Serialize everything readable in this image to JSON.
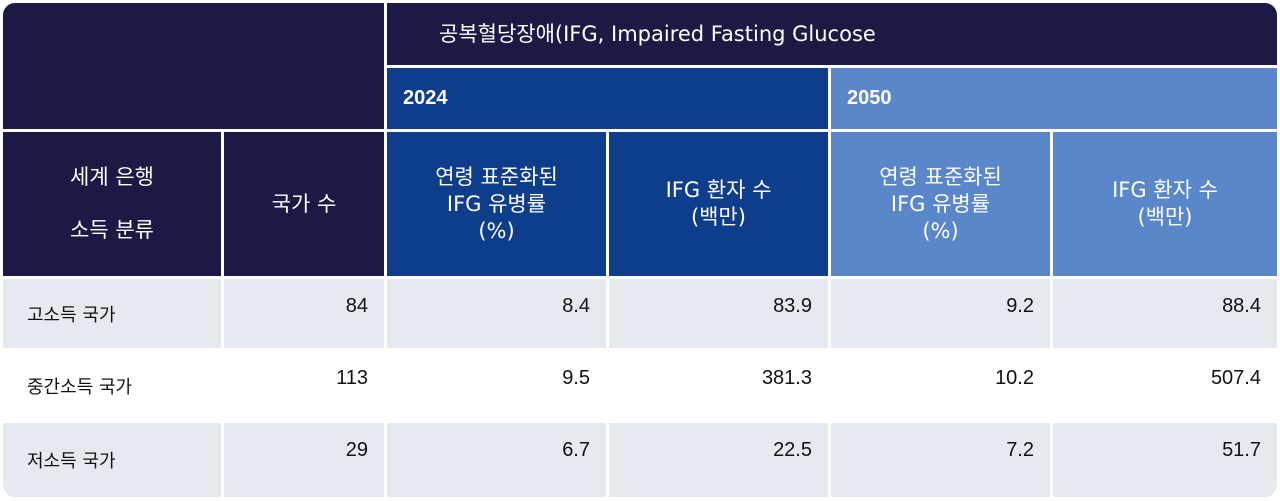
{
  "header": {
    "main_title": "공복혈당장애(IFG, Impaired Fasting Glucose",
    "year_2024": "2024",
    "year_2050": "2050",
    "col_category_line1": "세계 은행",
    "col_category_line2": "소득 분류",
    "col_countries": "국가 수",
    "col_prevalence": [
      "연령 표준화된",
      "IFG 유병률",
      "(%)"
    ],
    "col_patients": [
      "IFG 환자 수",
      "(백만)"
    ]
  },
  "rows": [
    {
      "label": "고소득 국가",
      "countries": "84",
      "prev_2024": "8.4",
      "patients_2024": "83.9",
      "prev_2050": "9.2",
      "patients_2050": "88.4"
    },
    {
      "label": "중간소득 국가",
      "countries": "113",
      "prev_2024": "9.5",
      "patients_2024": "381.3",
      "prev_2050": "10.2",
      "patients_2050": "507.4"
    },
    {
      "label": "저소득 국가",
      "countries": "29",
      "prev_2024": "6.7",
      "patients_2024": "22.5",
      "prev_2050": "7.2",
      "patients_2050": "51.7"
    }
  ],
  "colors": {
    "dark": "#1c1a45",
    "navy_2024": "#0e3d8c",
    "blue_2050": "#5a87c9",
    "row_gray": "#e6e9ef"
  }
}
